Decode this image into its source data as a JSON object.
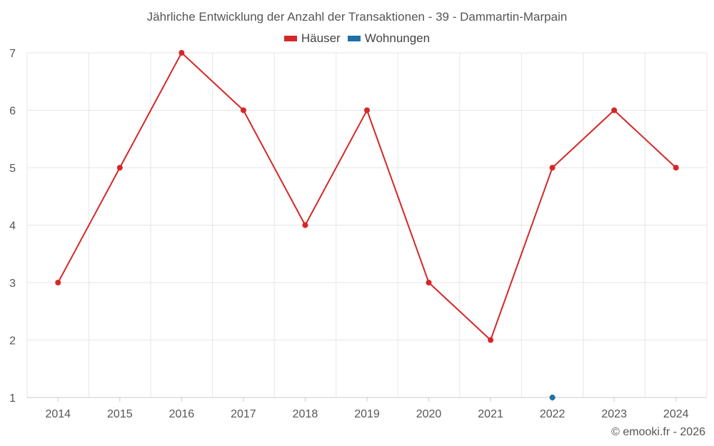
{
  "chart_data": {
    "type": "line",
    "title": "Jährliche Entwicklung der Anzahl der Transaktionen - 39 - Dammartin-Marpain",
    "categories": [
      "2014",
      "2015",
      "2016",
      "2017",
      "2018",
      "2019",
      "2020",
      "2021",
      "2022",
      "2023",
      "2024"
    ],
    "series": [
      {
        "name": "Häuser",
        "color": "#d62728",
        "values": [
          3,
          5,
          7,
          6,
          4,
          6,
          3,
          2,
          5,
          6,
          5
        ]
      },
      {
        "name": "Wohnungen",
        "color": "#1f6fa8",
        "values": [
          null,
          null,
          null,
          null,
          null,
          null,
          null,
          null,
          1,
          null,
          null
        ]
      }
    ],
    "ylim": [
      1,
      7
    ],
    "yticks": [
      "1",
      "2",
      "3",
      "4",
      "5",
      "6",
      "7"
    ],
    "grid": true,
    "legend_position": "top-center"
  },
  "credit": "© emooki.fr - 2026"
}
